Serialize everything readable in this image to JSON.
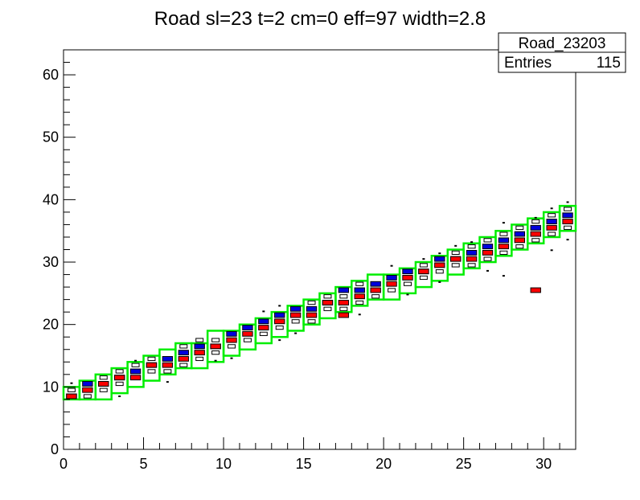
{
  "chart_data": {
    "type": "heatmap",
    "title": "Road sl=23 t=2 cm=0 eff=97 width=2.8",
    "xlabel": "",
    "ylabel": "",
    "xlim": [
      0,
      32
    ],
    "ylim": [
      0,
      64
    ],
    "x_ticks": [
      "0",
      "5",
      "10",
      "15",
      "20",
      "25",
      "30"
    ],
    "y_ticks": [
      "0",
      "10",
      "20",
      "30",
      "40",
      "50",
      "60"
    ],
    "grid": false,
    "stats_box": {
      "name": "Road_23203",
      "entries_label": "Entries",
      "entries_value": "115",
      "placement": "top-right"
    },
    "colors": {
      "road": "#00ee00",
      "blue_cell": "#0000dd",
      "red_cell": "#ff0000",
      "black_cell": "#000000"
    },
    "road_x": [
      0,
      1,
      2,
      3,
      4,
      5,
      6,
      7,
      8,
      9,
      10,
      11,
      12,
      13,
      14,
      15,
      16,
      17,
      18,
      19,
      20,
      21,
      22,
      23,
      24,
      25,
      26,
      27,
      28,
      29,
      30,
      31
    ],
    "road_lo": [
      8,
      8,
      8,
      9,
      10,
      11,
      12,
      13,
      13,
      14,
      15,
      16,
      17,
      18,
      19,
      20,
      21,
      22,
      23,
      24,
      24,
      25,
      26,
      27,
      28,
      29,
      30,
      31,
      32,
      33,
      34,
      35
    ],
    "road_hi": [
      10,
      11,
      12,
      13,
      14,
      15,
      16,
      17,
      17,
      19,
      19,
      20,
      21,
      22,
      23,
      24,
      25,
      26,
      27,
      28,
      28,
      29,
      30,
      31,
      32,
      33,
      34,
      35,
      36,
      37,
      38,
      39
    ],
    "cells": {
      "blue": [
        [
          0,
          8
        ],
        [
          1,
          10
        ],
        [
          2,
          10
        ],
        [
          3,
          11
        ],
        [
          4,
          12
        ],
        [
          5,
          13
        ],
        [
          6,
          14
        ],
        [
          7,
          15
        ],
        [
          8,
          16
        ],
        [
          9,
          16
        ],
        [
          10,
          18
        ],
        [
          11,
          19
        ],
        [
          12,
          20
        ],
        [
          13,
          21
        ],
        [
          14,
          22
        ],
        [
          15,
          22
        ],
        [
          16,
          23
        ],
        [
          17,
          25
        ],
        [
          18,
          25
        ],
        [
          19,
          26
        ],
        [
          20,
          27
        ],
        [
          21,
          28
        ],
        [
          22,
          28
        ],
        [
          23,
          30
        ],
        [
          24,
          30
        ],
        [
          25,
          31
        ],
        [
          26,
          32
        ],
        [
          27,
          33
        ],
        [
          28,
          34
        ],
        [
          29,
          35
        ],
        [
          30,
          36
        ],
        [
          31,
          37
        ]
      ],
      "red": [
        [
          0,
          8
        ],
        [
          1,
          9
        ],
        [
          2,
          10
        ],
        [
          3,
          11
        ],
        [
          4,
          11
        ],
        [
          5,
          13
        ],
        [
          6,
          13
        ],
        [
          7,
          14
        ],
        [
          8,
          15
        ],
        [
          9,
          16
        ],
        [
          10,
          17
        ],
        [
          11,
          18
        ],
        [
          12,
          19
        ],
        [
          13,
          20
        ],
        [
          14,
          21
        ],
        [
          15,
          21
        ],
        [
          16,
          23
        ],
        [
          17,
          23
        ],
        [
          18,
          24
        ],
        [
          19,
          25
        ],
        [
          20,
          26
        ],
        [
          21,
          27
        ],
        [
          22,
          28
        ],
        [
          23,
          29
        ],
        [
          24,
          30
        ],
        [
          25,
          30
        ],
        [
          26,
          31
        ],
        [
          27,
          32
        ],
        [
          28,
          33
        ],
        [
          29,
          34
        ],
        [
          30,
          35
        ],
        [
          31,
          36
        ],
        [
          29,
          25
        ],
        [
          17,
          21
        ]
      ],
      "black": [
        [
          0,
          9
        ],
        [
          1,
          8
        ],
        [
          1,
          10
        ],
        [
          2,
          9
        ],
        [
          2,
          11
        ],
        [
          3,
          10
        ],
        [
          3,
          12
        ],
        [
          4,
          11
        ],
        [
          4,
          13
        ],
        [
          5,
          12
        ],
        [
          5,
          14
        ],
        [
          6,
          12
        ],
        [
          6,
          14
        ],
        [
          7,
          13
        ],
        [
          7,
          16
        ],
        [
          8,
          14
        ],
        [
          8,
          17
        ],
        [
          9,
          15
        ],
        [
          9,
          17
        ],
        [
          10,
          16
        ],
        [
          10,
          18
        ],
        [
          11,
          17
        ],
        [
          11,
          19
        ],
        [
          12,
          18
        ],
        [
          12,
          20
        ],
        [
          13,
          19
        ],
        [
          13,
          21
        ],
        [
          14,
          20
        ],
        [
          14,
          22
        ],
        [
          15,
          20
        ],
        [
          15,
          23
        ],
        [
          16,
          22
        ],
        [
          16,
          24
        ],
        [
          17,
          22
        ],
        [
          17,
          24
        ],
        [
          18,
          23
        ],
        [
          18,
          26
        ],
        [
          19,
          24
        ],
        [
          19,
          26
        ],
        [
          20,
          25
        ],
        [
          20,
          27
        ],
        [
          21,
          26
        ],
        [
          21,
          28
        ],
        [
          22,
          27
        ],
        [
          22,
          29
        ],
        [
          23,
          28
        ],
        [
          23,
          30
        ],
        [
          24,
          29
        ],
        [
          24,
          31
        ],
        [
          25,
          29
        ],
        [
          25,
          32
        ],
        [
          26,
          30
        ],
        [
          26,
          33
        ],
        [
          27,
          31
        ],
        [
          27,
          34
        ],
        [
          28,
          32
        ],
        [
          28,
          35
        ],
        [
          29,
          33
        ],
        [
          29,
          36
        ],
        [
          30,
          34
        ],
        [
          30,
          37
        ],
        [
          31,
          35
        ],
        [
          31,
          38
        ]
      ],
      "dots": [
        [
          0,
          10.6
        ],
        [
          3,
          8.5
        ],
        [
          4,
          14.2
        ],
        [
          6,
          10.8
        ],
        [
          9,
          14.2
        ],
        [
          10,
          14.6
        ],
        [
          12,
          22.1
        ],
        [
          13,
          17.5
        ],
        [
          13,
          23
        ],
        [
          14,
          18.6
        ],
        [
          18,
          21.6
        ],
        [
          20,
          29.4
        ],
        [
          21,
          24.8
        ],
        [
          22,
          30.5
        ],
        [
          23,
          26.8
        ],
        [
          23,
          31.4
        ],
        [
          24,
          32.6
        ],
        [
          25,
          33.2
        ],
        [
          26,
          28.6
        ],
        [
          27,
          36.3
        ],
        [
          27,
          27.8
        ],
        [
          29,
          37.1
        ],
        [
          30,
          31.9
        ],
        [
          30,
          38.6
        ],
        [
          31,
          39.6
        ],
        [
          31,
          33.6
        ]
      ]
    }
  }
}
